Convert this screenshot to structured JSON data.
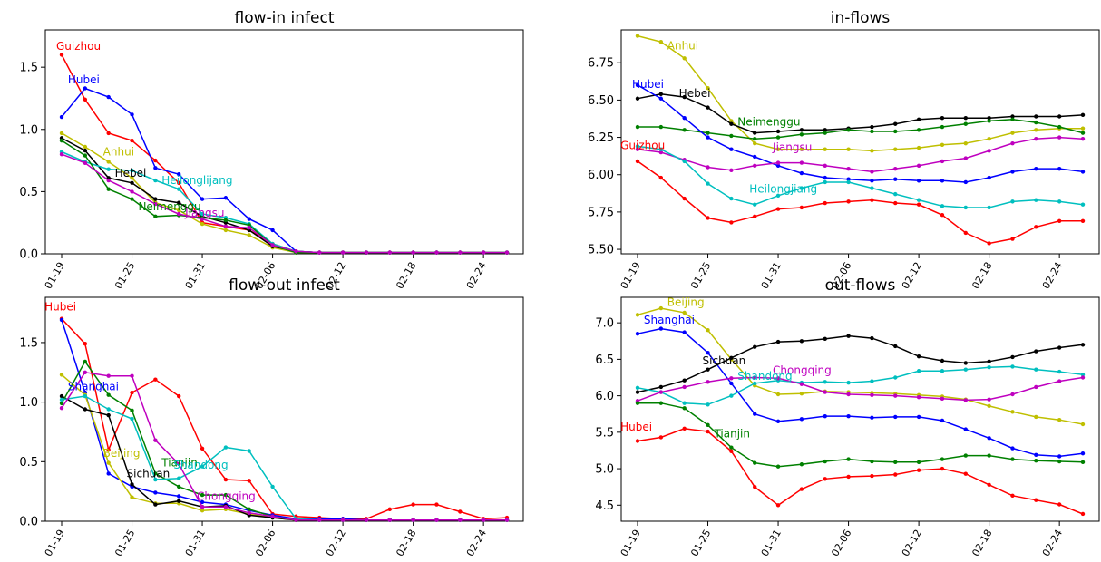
{
  "chart_data": [
    {
      "type": "line",
      "title": "flow-in infect",
      "xlabel": "",
      "ylabel": "",
      "x": [
        "01-19",
        "01-21",
        "01-23",
        "01-25",
        "01-27",
        "01-29",
        "01-31",
        "02-02",
        "02-04",
        "02-06",
        "02-08",
        "02-10",
        "02-12",
        "02-14",
        "02-16",
        "02-18",
        "02-20",
        "02-22",
        "02-24",
        "02-26"
      ],
      "xticks": [
        "01-19",
        "01-25",
        "01-31",
        "02-06",
        "02-12",
        "02-18",
        "02-24"
      ],
      "ylim": [
        0,
        1.8
      ],
      "yticks": [
        "0.0",
        "0.5",
        "1.0",
        "1.5"
      ],
      "grid": false,
      "series": [
        {
          "color": "#ff0000",
          "values": [
            1.6,
            1.24,
            0.97,
            0.91,
            0.75,
            0.57,
            0.25,
            0.22,
            0.19,
            0.08,
            0.02,
            0.01,
            0.01,
            0.01,
            0.01,
            0.01,
            0.01,
            0.01,
            0.01,
            0.01
          ]
        },
        {
          "color": "#0000ff",
          "values": [
            1.1,
            1.33,
            1.26,
            1.12,
            0.69,
            0.64,
            0.44,
            0.45,
            0.28,
            0.19,
            0.02,
            0.01,
            0.01,
            0.01,
            0.01,
            0.01,
            0.01,
            0.01,
            0.01,
            0.01
          ]
        },
        {
          "color": "#bfbf00",
          "values": [
            0.97,
            0.86,
            0.74,
            0.61,
            0.41,
            0.35,
            0.24,
            0.19,
            0.15,
            0.05,
            0.01,
            0.01,
            0.01,
            0.01,
            0.01,
            0.01,
            0.01,
            0.01,
            0.01,
            0.01
          ]
        },
        {
          "color": "#000000",
          "values": [
            0.93,
            0.83,
            0.61,
            0.57,
            0.44,
            0.41,
            0.3,
            0.25,
            0.19,
            0.06,
            0.02,
            0.01,
            0.01,
            0.01,
            0.01,
            0.01,
            0.01,
            0.01,
            0.01,
            0.01
          ]
        },
        {
          "color": "#00bfbf",
          "values": [
            0.82,
            0.74,
            0.68,
            0.67,
            0.59,
            0.52,
            0.32,
            0.29,
            0.24,
            0.08,
            0.02,
            0.01,
            0.01,
            0.01,
            0.01,
            0.01,
            0.01,
            0.01,
            0.01,
            0.01
          ]
        },
        {
          "color": "#008000",
          "values": [
            0.91,
            0.79,
            0.52,
            0.44,
            0.3,
            0.31,
            0.29,
            0.27,
            0.23,
            0.07,
            0.01,
            0.01,
            0.01,
            0.01,
            0.01,
            0.01,
            0.01,
            0.01,
            0.01,
            0.01
          ]
        },
        {
          "color": "#bf00bf",
          "values": [
            0.8,
            0.73,
            0.59,
            0.5,
            0.4,
            0.32,
            0.28,
            0.22,
            0.21,
            0.07,
            0.02,
            0.01,
            0.01,
            0.01,
            0.01,
            0.01,
            0.01,
            0.01,
            0.01,
            0.01
          ]
        }
      ],
      "annotations": [
        {
          "text": "Guizhou",
          "x": "01-19",
          "y": 1.64,
          "color": "#ff0000"
        },
        {
          "text": "Hubei",
          "x": "01-20",
          "y": 1.37,
          "color": "#0000ff"
        },
        {
          "text": "Anhui",
          "x": "01-23",
          "y": 0.79,
          "color": "#bfbf00"
        },
        {
          "text": "Hebei",
          "x": "01-24",
          "y": 0.62,
          "color": "#000000"
        },
        {
          "text": "Heilonglijang",
          "x": "01-28",
          "y": 0.56,
          "color": "#00bfbf"
        },
        {
          "text": "Neimenggu",
          "x": "01-26",
          "y": 0.35,
          "color": "#008000"
        },
        {
          "text": "Jiangsu",
          "x": "01-30",
          "y": 0.3,
          "color": "#bf00bf"
        }
      ]
    },
    {
      "type": "line",
      "title": "in-flows",
      "xlabel": "",
      "ylabel": "",
      "x": [
        "01-19",
        "01-21",
        "01-23",
        "01-25",
        "01-27",
        "01-29",
        "01-31",
        "02-02",
        "02-04",
        "02-06",
        "02-08",
        "02-10",
        "02-12",
        "02-14",
        "02-16",
        "02-18",
        "02-20",
        "02-22",
        "02-24",
        "02-26"
      ],
      "xticks": [
        "01-19",
        "01-25",
        "01-31",
        "02-06",
        "02-12",
        "02-18",
        "02-24"
      ],
      "ylim": [
        5.47,
        6.97
      ],
      "yticks": [
        "5.50",
        "5.75",
        "6.00",
        "6.25",
        "6.50",
        "6.75"
      ],
      "grid": false,
      "series": [
        {
          "color": "#bfbf00",
          "values": [
            6.93,
            6.89,
            6.78,
            6.58,
            6.36,
            6.21,
            6.17,
            6.17,
            6.17,
            6.17,
            6.16,
            6.17,
            6.18,
            6.2,
            6.21,
            6.24,
            6.28,
            6.3,
            6.31,
            6.31
          ]
        },
        {
          "color": "#000000",
          "values": [
            6.51,
            6.54,
            6.52,
            6.45,
            6.34,
            6.28,
            6.29,
            6.3,
            6.3,
            6.31,
            6.32,
            6.34,
            6.37,
            6.38,
            6.38,
            6.38,
            6.39,
            6.39,
            6.39,
            6.4
          ]
        },
        {
          "color": "#008000",
          "values": [
            6.32,
            6.32,
            6.3,
            6.28,
            6.26,
            6.24,
            6.25,
            6.27,
            6.28,
            6.3,
            6.29,
            6.29,
            6.3,
            6.32,
            6.34,
            6.36,
            6.37,
            6.35,
            6.32,
            6.28
          ]
        },
        {
          "color": "#0000ff",
          "values": [
            6.6,
            6.51,
            6.38,
            6.25,
            6.17,
            6.12,
            6.06,
            6.01,
            5.98,
            5.97,
            5.96,
            5.97,
            5.96,
            5.96,
            5.95,
            5.98,
            6.02,
            6.04,
            6.04,
            6.02
          ]
        },
        {
          "color": "#bf00bf",
          "values": [
            6.17,
            6.15,
            6.1,
            6.05,
            6.03,
            6.06,
            6.08,
            6.08,
            6.06,
            6.04,
            6.02,
            6.04,
            6.06,
            6.09,
            6.11,
            6.16,
            6.21,
            6.24,
            6.25,
            6.24
          ]
        },
        {
          "color": "#00bfbf",
          "values": [
            6.19,
            6.17,
            6.09,
            5.94,
            5.84,
            5.8,
            5.86,
            5.91,
            5.95,
            5.95,
            5.91,
            5.87,
            5.83,
            5.79,
            5.78,
            5.78,
            5.82,
            5.83,
            5.82,
            5.8
          ]
        },
        {
          "color": "#ff0000",
          "values": [
            6.09,
            5.98,
            5.84,
            5.71,
            5.68,
            5.72,
            5.77,
            5.78,
            5.81,
            5.82,
            5.83,
            5.81,
            5.8,
            5.73,
            5.61,
            5.54,
            5.57,
            5.65,
            5.69,
            5.69
          ]
        }
      ],
      "annotations": [
        {
          "text": "Anhui",
          "x": "01-22",
          "y": 6.84,
          "color": "#bfbf00"
        },
        {
          "text": "Hubei",
          "x": "01-19",
          "y": 6.58,
          "color": "#0000ff"
        },
        {
          "text": "Hebei",
          "x": "01-23",
          "y": 6.52,
          "color": "#000000"
        },
        {
          "text": "Neimenggu",
          "x": "01-28",
          "y": 6.33,
          "color": "#008000"
        },
        {
          "text": "Guizhou",
          "x": "01-18",
          "y": 6.17,
          "color": "#ff0000"
        },
        {
          "text": "Jiangsu",
          "x": "01-31",
          "y": 6.16,
          "color": "#bf00bf"
        },
        {
          "text": "Heilongjiang",
          "x": "01-29",
          "y": 5.88,
          "color": "#00bfbf"
        }
      ]
    },
    {
      "type": "line",
      "title": "flow-out infect",
      "xlabel": "",
      "ylabel": "",
      "x": [
        "01-19",
        "01-21",
        "01-23",
        "01-25",
        "01-27",
        "01-29",
        "01-31",
        "02-02",
        "02-04",
        "02-06",
        "02-08",
        "02-10",
        "02-12",
        "02-14",
        "02-16",
        "02-18",
        "02-20",
        "02-22",
        "02-24",
        "02-26"
      ],
      "xticks": [
        "01-19",
        "01-25",
        "01-31",
        "02-06",
        "02-12",
        "02-18",
        "02-24"
      ],
      "ylim": [
        0,
        1.88
      ],
      "yticks": [
        "0.0",
        "0.5",
        "1.0",
        "1.5"
      ],
      "grid": false,
      "series": [
        {
          "color": "#ff0000",
          "values": [
            1.7,
            1.49,
            0.6,
            1.08,
            1.19,
            1.05,
            0.61,
            0.35,
            0.34,
            0.06,
            0.04,
            0.03,
            0.02,
            0.02,
            0.1,
            0.14,
            0.14,
            0.08,
            0.02,
            0.03
          ]
        },
        {
          "color": "#0000ff",
          "values": [
            1.69,
            1.08,
            0.4,
            0.29,
            0.24,
            0.21,
            0.16,
            0.14,
            0.09,
            0.05,
            0.02,
            0.02,
            0.02,
            0.01,
            0.01,
            0.01,
            0.01,
            0.01,
            0.01,
            0.01
          ]
        },
        {
          "color": "#bfbf00",
          "values": [
            1.23,
            1.06,
            0.49,
            0.2,
            0.15,
            0.15,
            0.09,
            0.1,
            0.06,
            0.03,
            0.01,
            0.01,
            0.01,
            0.01,
            0.01,
            0.01,
            0.01,
            0.01,
            0.01,
            0.01
          ]
        },
        {
          "color": "#000000",
          "values": [
            1.05,
            0.94,
            0.89,
            0.31,
            0.14,
            0.17,
            0.12,
            0.13,
            0.05,
            0.03,
            0.01,
            0.01,
            0.01,
            0.01,
            0.01,
            0.01,
            0.01,
            0.01,
            0.01,
            0.01
          ]
        },
        {
          "color": "#008000",
          "values": [
            0.99,
            1.34,
            1.06,
            0.93,
            0.4,
            0.29,
            0.22,
            0.22,
            0.1,
            0.04,
            0.01,
            0.01,
            0.01,
            0.01,
            0.01,
            0.01,
            0.01,
            0.01,
            0.01,
            0.01
          ]
        },
        {
          "color": "#00bfbf",
          "values": [
            1.02,
            1.05,
            0.94,
            0.86,
            0.35,
            0.36,
            0.46,
            0.62,
            0.59,
            0.29,
            0.02,
            0.01,
            0.01,
            0.01,
            0.01,
            0.01,
            0.01,
            0.01,
            0.01,
            0.01
          ]
        },
        {
          "color": "#bf00bf",
          "values": [
            0.95,
            1.25,
            1.22,
            1.22,
            0.68,
            0.48,
            0.12,
            0.12,
            0.07,
            0.04,
            0.01,
            0.01,
            0.01,
            0.01,
            0.01,
            0.01,
            0.01,
            0.01,
            0.01,
            0.01
          ]
        }
      ],
      "annotations": [
        {
          "text": "Hubei",
          "x": "01-18",
          "y": 1.77,
          "color": "#ff0000"
        },
        {
          "text": "Shanghai",
          "x": "01-20",
          "y": 1.1,
          "color": "#0000ff"
        },
        {
          "text": "Beijing",
          "x": "01-23",
          "y": 0.54,
          "color": "#bfbf00"
        },
        {
          "text": "Tianjin",
          "x": "01-28",
          "y": 0.46,
          "color": "#008000"
        },
        {
          "text": "Shandong",
          "x": "01-29",
          "y": 0.44,
          "color": "#00bfbf"
        },
        {
          "text": "Sichuan",
          "x": "01-25",
          "y": 0.37,
          "color": "#000000"
        },
        {
          "text": "Chongqing",
          "x": "01-31",
          "y": 0.18,
          "color": "#bf00bf"
        }
      ]
    },
    {
      "type": "line",
      "title": "out-flows",
      "xlabel": "",
      "ylabel": "",
      "x": [
        "01-19",
        "01-21",
        "01-23",
        "01-25",
        "01-27",
        "01-29",
        "01-31",
        "02-02",
        "02-04",
        "02-06",
        "02-08",
        "02-10",
        "02-12",
        "02-14",
        "02-16",
        "02-18",
        "02-20",
        "02-22",
        "02-24",
        "02-26"
      ],
      "xticks": [
        "01-19",
        "01-25",
        "01-31",
        "02-06",
        "02-12",
        "02-18",
        "02-24"
      ],
      "ylim": [
        4.28,
        7.35
      ],
      "yticks": [
        "4.5",
        "5.0",
        "5.5",
        "6.0",
        "6.5",
        "7.0"
      ],
      "grid": false,
      "series": [
        {
          "color": "#bfbf00",
          "values": [
            7.11,
            7.2,
            7.14,
            6.9,
            6.5,
            6.14,
            6.02,
            6.03,
            6.06,
            6.05,
            6.04,
            6.03,
            6.01,
            5.99,
            5.95,
            5.86,
            5.78,
            5.71,
            5.67,
            5.61
          ]
        },
        {
          "color": "#0000ff",
          "values": [
            6.85,
            6.92,
            6.87,
            6.59,
            6.17,
            5.75,
            5.65,
            5.68,
            5.72,
            5.72,
            5.7,
            5.71,
            5.71,
            5.66,
            5.54,
            5.42,
            5.28,
            5.19,
            5.17,
            5.21
          ]
        },
        {
          "color": "#000000",
          "values": [
            6.05,
            6.12,
            6.21,
            6.36,
            6.52,
            6.67,
            6.74,
            6.75,
            6.78,
            6.82,
            6.79,
            6.68,
            6.54,
            6.48,
            6.45,
            6.47,
            6.53,
            6.61,
            6.66,
            6.7
          ]
        },
        {
          "color": "#00bfbf",
          "values": [
            6.11,
            6.05,
            5.9,
            5.88,
            6.0,
            6.17,
            6.21,
            6.18,
            6.19,
            6.18,
            6.2,
            6.25,
            6.34,
            6.34,
            6.36,
            6.39,
            6.4,
            6.36,
            6.33,
            6.29
          ]
        },
        {
          "color": "#bf00bf",
          "values": [
            5.93,
            6.05,
            6.12,
            6.19,
            6.24,
            6.25,
            6.24,
            6.16,
            6.05,
            6.02,
            6.01,
            6.0,
            5.98,
            5.96,
            5.94,
            5.95,
            6.02,
            6.12,
            6.2,
            6.25
          ]
        },
        {
          "color": "#008000",
          "values": [
            5.9,
            5.9,
            5.83,
            5.6,
            5.29,
            5.08,
            5.03,
            5.06,
            5.1,
            5.13,
            5.1,
            5.09,
            5.09,
            5.13,
            5.18,
            5.18,
            5.13,
            5.11,
            5.1,
            5.09
          ]
        },
        {
          "color": "#ff0000",
          "values": [
            5.38,
            5.43,
            5.55,
            5.51,
            5.24,
            4.75,
            4.5,
            4.72,
            4.86,
            4.89,
            4.9,
            4.92,
            4.98,
            5.0,
            4.93,
            4.78,
            4.63,
            4.57,
            4.51,
            4.38
          ]
        }
      ],
      "annotations": [
        {
          "text": "Beijing",
          "x": "01-22",
          "y": 7.23,
          "color": "#bfbf00"
        },
        {
          "text": "Shanghai",
          "x": "01-20",
          "y": 6.99,
          "color": "#0000ff"
        },
        {
          "text": "Sichuan",
          "x": "01-25",
          "y": 6.43,
          "color": "#000000"
        },
        {
          "text": "Chongqing",
          "x": "01-31",
          "y": 6.3,
          "color": "#bf00bf"
        },
        {
          "text": "Shandong",
          "x": "01-28",
          "y": 6.22,
          "color": "#00bfbf"
        },
        {
          "text": "Hubei",
          "x": "01-18",
          "y": 5.52,
          "color": "#ff0000"
        },
        {
          "text": "Tianjin",
          "x": "01-26",
          "y": 5.43,
          "color": "#008000"
        }
      ]
    }
  ]
}
